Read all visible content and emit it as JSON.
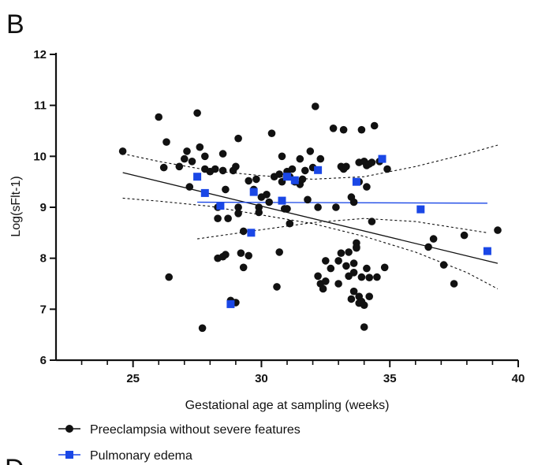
{
  "panel_label_top": "B",
  "panel_label_bottom": "D",
  "colors": {
    "preeclampsia": "#111111",
    "pulmonary_edema": "#1a47e6",
    "axis": "#111111"
  },
  "chart_data": {
    "type": "scatter",
    "xlabel": "Gestational age at sampling (weeks)",
    "ylabel": "Log(sFlt-1)",
    "xlim": [
      22,
      40
    ],
    "ylim": [
      6,
      12
    ],
    "x_major_ticks": [
      25,
      30,
      35,
      40
    ],
    "x_minor_ticks": [
      23,
      24,
      26,
      27,
      28,
      29,
      31,
      32,
      33,
      34,
      36,
      37,
      38,
      39
    ],
    "y_ticks": [
      6,
      7,
      8,
      9,
      10,
      11,
      12
    ],
    "x_tick_labels": [
      "25",
      "30",
      "35",
      "40"
    ],
    "y_tick_labels": [
      "6",
      "7",
      "8",
      "9",
      "10",
      "11",
      "12"
    ],
    "grid": false,
    "legend_placement": "bottom-left",
    "series": [
      {
        "name": "Preeclampsia without severe features",
        "marker": "circle",
        "points": [
          [
            24.6,
            10.1
          ],
          [
            26.0,
            10.77
          ],
          [
            26.3,
            10.28
          ],
          [
            26.2,
            9.78
          ],
          [
            26.4,
            7.63
          ],
          [
            26.8,
            9.8
          ],
          [
            27.0,
            9.95
          ],
          [
            27.1,
            10.1
          ],
          [
            27.2,
            9.4
          ],
          [
            27.3,
            9.9
          ],
          [
            27.5,
            10.85
          ],
          [
            27.6,
            10.18
          ],
          [
            27.8,
            10.0
          ],
          [
            27.8,
            9.75
          ],
          [
            27.7,
            6.63
          ],
          [
            28.0,
            9.7
          ],
          [
            28.2,
            9.75
          ],
          [
            28.5,
            10.05
          ],
          [
            28.5,
            9.72
          ],
          [
            28.6,
            9.35
          ],
          [
            28.7,
            8.78
          ],
          [
            28.3,
            9.0
          ],
          [
            28.3,
            8.78
          ],
          [
            28.3,
            8.0
          ],
          [
            28.5,
            8.03
          ],
          [
            28.6,
            8.07
          ],
          [
            28.9,
            9.72
          ],
          [
            29.0,
            9.8
          ],
          [
            29.1,
            9.0
          ],
          [
            29.1,
            8.88
          ],
          [
            29.2,
            8.1
          ],
          [
            29.3,
            8.53
          ],
          [
            29.3,
            7.82
          ],
          [
            29.5,
            8.05
          ],
          [
            29.5,
            9.52
          ],
          [
            29.1,
            10.35
          ],
          [
            28.8,
            7.17
          ],
          [
            29.0,
            7.13
          ],
          [
            29.7,
            9.35
          ],
          [
            29.8,
            9.55
          ],
          [
            29.9,
            9.0
          ],
          [
            29.9,
            8.9
          ],
          [
            30.0,
            9.2
          ],
          [
            30.2,
            9.25
          ],
          [
            30.3,
            9.1
          ],
          [
            30.4,
            10.45
          ],
          [
            30.5,
            9.6
          ],
          [
            30.7,
            9.65
          ],
          [
            30.8,
            10.0
          ],
          [
            30.8,
            9.5
          ],
          [
            30.9,
            8.97
          ],
          [
            30.7,
            8.12
          ],
          [
            30.6,
            7.44
          ],
          [
            31.0,
            9.7
          ],
          [
            31.1,
            9.6
          ],
          [
            31.2,
            9.75
          ],
          [
            31.3,
            9.5
          ],
          [
            31.5,
            9.45
          ],
          [
            31.5,
            9.95
          ],
          [
            31.0,
            8.97
          ],
          [
            31.1,
            8.68
          ],
          [
            31.6,
            9.55
          ],
          [
            31.7,
            9.72
          ],
          [
            31.8,
            9.15
          ],
          [
            31.9,
            10.1
          ],
          [
            32.0,
            9.78
          ],
          [
            32.1,
            10.98
          ],
          [
            32.2,
            9.0
          ],
          [
            32.3,
            9.95
          ],
          [
            32.2,
            7.65
          ],
          [
            32.3,
            7.5
          ],
          [
            32.4,
            7.4
          ],
          [
            32.5,
            7.55
          ],
          [
            32.5,
            7.95
          ],
          [
            32.7,
            7.8
          ],
          [
            32.8,
            10.55
          ],
          [
            32.9,
            9.0
          ],
          [
            33.0,
            7.95
          ],
          [
            33.0,
            7.5
          ],
          [
            33.1,
            8.1
          ],
          [
            33.1,
            9.8
          ],
          [
            33.2,
            10.52
          ],
          [
            33.2,
            9.75
          ],
          [
            33.3,
            9.8
          ],
          [
            33.3,
            7.85
          ],
          [
            33.4,
            7.65
          ],
          [
            33.4,
            8.12
          ],
          [
            33.5,
            9.2
          ],
          [
            33.5,
            7.2
          ],
          [
            33.6,
            7.35
          ],
          [
            33.6,
            9.1
          ],
          [
            33.6,
            7.72
          ],
          [
            33.7,
            8.3
          ],
          [
            33.7,
            8.22
          ],
          [
            33.8,
            9.88
          ],
          [
            33.8,
            9.5
          ],
          [
            33.9,
            10.52
          ],
          [
            33.8,
            7.25
          ],
          [
            33.8,
            7.12
          ],
          [
            33.9,
            7.15
          ],
          [
            33.9,
            7.63
          ],
          [
            34.0,
            9.9
          ],
          [
            34.0,
            7.08
          ],
          [
            34.0,
            6.65
          ],
          [
            34.1,
            9.82
          ],
          [
            34.1,
            7.8
          ],
          [
            34.2,
            7.62
          ],
          [
            34.2,
            7.25
          ],
          [
            34.1,
            9.4
          ],
          [
            34.2,
            9.85
          ],
          [
            34.3,
            9.88
          ],
          [
            34.3,
            8.72
          ],
          [
            34.4,
            10.6
          ],
          [
            34.5,
            7.63
          ],
          [
            34.6,
            9.9
          ],
          [
            34.8,
            7.82
          ],
          [
            34.9,
            9.75
          ],
          [
            33.7,
            8.2
          ],
          [
            33.6,
            7.9
          ],
          [
            36.5,
            8.22
          ],
          [
            36.7,
            8.38
          ],
          [
            37.1,
            7.87
          ],
          [
            37.5,
            7.5
          ],
          [
            37.9,
            8.45
          ],
          [
            39.2,
            8.55
          ]
        ]
      },
      {
        "name": "Pulmonary edema",
        "marker": "square",
        "points": [
          [
            27.5,
            9.6
          ],
          [
            27.8,
            9.28
          ],
          [
            28.4,
            9.03
          ],
          [
            28.8,
            7.1
          ],
          [
            29.6,
            8.5
          ],
          [
            29.7,
            9.3
          ],
          [
            30.8,
            9.13
          ],
          [
            31.0,
            9.6
          ],
          [
            31.3,
            9.53
          ],
          [
            32.2,
            9.73
          ],
          [
            33.7,
            9.5
          ],
          [
            34.7,
            9.95
          ],
          [
            36.2,
            8.96
          ],
          [
            38.8,
            8.14
          ]
        ]
      }
    ],
    "fit_lines": [
      {
        "series": "Preeclampsia without severe features",
        "x": [
          24.6,
          39.2
        ],
        "y": [
          9.68,
          7.9
        ]
      },
      {
        "series": "Pulmonary edema",
        "x": [
          27.5,
          38.8
        ],
        "y": [
          9.1,
          9.08
        ]
      }
    ],
    "confidence_band": {
      "series": "Preeclampsia without severe features",
      "x": [
        24.6,
        26,
        28,
        30,
        32,
        34,
        36,
        38,
        39.2
      ],
      "upper": [
        10.05,
        9.9,
        9.72,
        9.62,
        9.55,
        9.6,
        9.8,
        10.05,
        10.22
      ],
      "lower": [
        9.18,
        9.12,
        9.02,
        8.85,
        8.68,
        8.43,
        8.12,
        7.72,
        7.4
      ]
    },
    "pulmonary_ci_lines": {
      "upper": {
        "x": [
          27.5,
          30,
          32,
          34,
          36,
          38.8
        ],
        "y": [
          8.38,
          8.56,
          8.7,
          8.78,
          8.72,
          8.5
        ]
      }
    }
  }
}
